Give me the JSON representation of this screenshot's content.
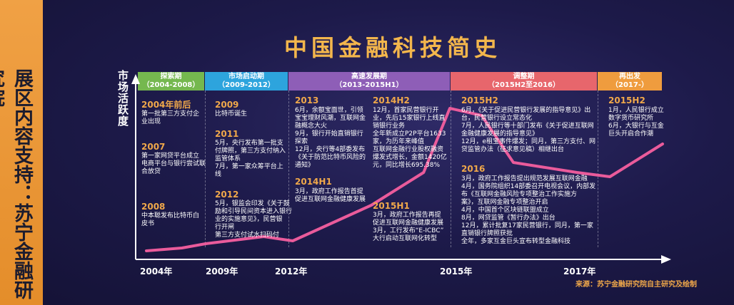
{
  "sidebar": {
    "text": "展区内容支持：苏宁金融研究院"
  },
  "title": "中国金融科技简史",
  "ylabel": "市场活跃度",
  "phases": [
    {
      "title": "探索期",
      "range": "（2004-2008）",
      "color": "#75b84f"
    },
    {
      "title": "市场启动期",
      "range": "（2009-2012）",
      "color": "#2da4dd"
    },
    {
      "title": "高速发展期",
      "range": "（2013-2015H1）",
      "color": "#8e5eb7"
    },
    {
      "title": "调整期",
      "range": "（2015H2至2016）",
      "color": "#e7666c"
    },
    {
      "title": "再出发",
      "range": "（2017-）",
      "color": "#ef9c3e"
    }
  ],
  "events": [
    {
      "year": "2004年前后",
      "lines": [
        "第一批第三方支付企",
        "业出现"
      ]
    },
    {
      "year": "2007",
      "lines": [
        "第一家网贷平台成立",
        "电商平台与银行尝试联",
        "合放贷"
      ]
    },
    {
      "year": "2008",
      "lines": [
        "中本聪发布比特币白",
        "皮书"
      ]
    },
    {
      "year": "2009",
      "lines": [
        "比特币诞生"
      ]
    },
    {
      "year": "2011",
      "lines": [
        "5月，央行发布第一批支",
        "付牌照，第三方支付纳入",
        "监管体系",
        "7月，第一家众筹平台上",
        "线"
      ]
    },
    {
      "year": "2012",
      "lines": [
        "5月，银监会印发《关于鼓",
        "励和引导民间资本进入银行",
        "业的实施意见》，民营银",
        "行开闸",
        "第三方支付试水扫码付"
      ]
    },
    {
      "year": "2013",
      "lines": [
        "6月，余额宝面世，引领",
        "宝宝理财风潮，互联网金",
        "融概念大火",
        "9月，银行开始直销银行",
        "探索",
        "12月，央行等4部委发布",
        "《关于防范比特币风险的",
        "通知》"
      ]
    },
    {
      "year": "2014H1",
      "lines": [
        "3月，政府工作报告首提",
        "促进互联网金融健康发展"
      ]
    },
    {
      "year": "2014H2",
      "lines": [
        "12月，首家民营银行开",
        "业，先后15家银行上线直",
        "销银行业务",
        "全年新成立P2P平台1633",
        "家，为历年来峰值",
        "互联网金融行业股权融资",
        "爆发式增长，金额1420亿",
        "元，同比增长695.38%"
      ]
    },
    {
      "year": "2015H1",
      "lines": [
        "3月，政府工作报告再提",
        "促进互联网金融健康发展",
        "3月，工行发布“E-ICBC”",
        "大行启动互联网化转型"
      ]
    },
    {
      "year": "2015H2",
      "lines": [
        "6月，《关于促进民营银行发展的指导意见》出",
        "台，民营银行设立常态化",
        "7月，人民银行等十部门发布《关于促进互联网",
        "金融健康发展的指导意见》",
        "12月，e租宝事件爆发；同月，第三方支付、网",
        "贷监管办法（征求意见稿）相继出台"
      ]
    },
    {
      "year": "2016",
      "lines": [
        "3月，政府工作报告提出规范发展互联网金融",
        "4月，国务院组织14部委召开电视会议，内部发",
        "布《互联网金融风险专项整治工作实施方",
        "案》，互联网金融专项整治开启",
        "4月，中国首个区块链联盟成立",
        "8月，网贷监管《暂行办法》出台",
        "12月，累计批复17家民营银行，同月，第一家",
        "直销银行牌照获批",
        "全年，多家互金巨头宣布转型金融科技"
      ]
    },
    {
      "year": "2015H2",
      "lines": [
        "1月，人民银行成立",
        "数字货币研究所",
        "6月，大银行与互金",
        "巨头开启合作潮"
      ]
    }
  ],
  "x_ticks": [
    "2004年",
    "2009年",
    "2012年",
    "2015年",
    "2017年"
  ],
  "source": "来源：苏宁金融研究院自主研究及绘制",
  "chart_data": {
    "type": "line",
    "ylabel": "市场活跃度",
    "x": [
      "2004",
      "2009",
      "2012",
      "2015",
      "2017"
    ],
    "note": "qualitative activity curve",
    "curve": [
      [
        2004,
        0.0
      ],
      [
        2007,
        0.02
      ],
      [
        2009,
        0.05
      ],
      [
        2011,
        0.1
      ],
      [
        2012,
        0.07
      ],
      [
        2013.5,
        0.32
      ],
      [
        2014.5,
        0.55
      ],
      [
        2015,
        1.0
      ],
      [
        2015.5,
        0.95
      ],
      [
        2016,
        0.62
      ],
      [
        2017,
        0.55
      ],
      [
        2017.5,
        0.52
      ],
      [
        2018.3,
        0.75
      ]
    ]
  }
}
